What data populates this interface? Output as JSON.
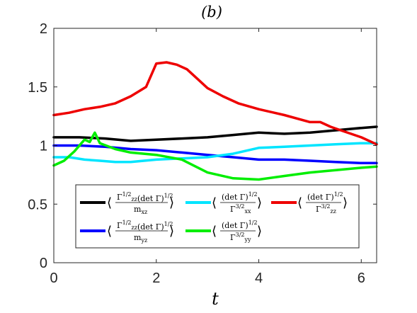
{
  "chart_data": {
    "type": "line",
    "title": "(b)",
    "xlabel": "t",
    "ylabel": "",
    "xlim": [
      0,
      6.3
    ],
    "ylim": [
      0,
      2
    ],
    "xticks": [
      0,
      2,
      4,
      6
    ],
    "yticks": [
      0,
      0.5,
      1,
      1.5,
      2
    ],
    "xtick_labels": [
      "0",
      "2",
      "4",
      "6"
    ],
    "ytick_labels": [
      "0",
      "0.5",
      "1",
      "1.5",
      "2"
    ],
    "grid": false,
    "legend_position": "lower-center",
    "series": [
      {
        "name": "⟨ Γzz^{1/2}(det Γ)^{1/2} / mxz ⟩",
        "color": "#000000",
        "legend_parts": {
          "num_a": "Γ",
          "num_a_sup": "1/2",
          "num_a_sub": "zz",
          "num_b": "(det Γ)",
          "num_b_sup": "1/2",
          "den": "m",
          "den_sub": "xz"
        },
        "x": [
          0,
          0.5,
          1.0,
          1.5,
          2.0,
          2.5,
          3.0,
          3.5,
          4.0,
          4.5,
          5.0,
          5.5,
          6.0,
          6.3
        ],
        "y": [
          1.07,
          1.07,
          1.06,
          1.04,
          1.05,
          1.06,
          1.07,
          1.09,
          1.11,
          1.1,
          1.11,
          1.13,
          1.15,
          1.16
        ]
      },
      {
        "name": "⟨ Γzz^{1/2}(det Γ)^{1/2} / myz ⟩",
        "color": "#0000ff",
        "legend_parts": {
          "num_a": "Γ",
          "num_a_sup": "1/2",
          "num_a_sub": "zz",
          "num_b": "(det Γ)",
          "num_b_sup": "1/2",
          "den": "m",
          "den_sub": "yz"
        },
        "x": [
          0,
          0.5,
          1.0,
          1.5,
          2.0,
          2.5,
          3.0,
          3.5,
          4.0,
          4.5,
          5.0,
          5.5,
          6.0,
          6.3
        ],
        "y": [
          1.0,
          1.0,
          0.99,
          0.97,
          0.96,
          0.94,
          0.92,
          0.9,
          0.88,
          0.88,
          0.87,
          0.86,
          0.85,
          0.85
        ]
      },
      {
        "name": "⟨ (det Γ)^{1/2} / Γxx^{3/2} ⟩",
        "color": "#00e5ff",
        "legend_parts": {
          "num_b": "(det Γ)",
          "num_b_sup": "1/2",
          "den": "Γ",
          "den_sup": "3/2",
          "den_sub": "xx"
        },
        "x": [
          0,
          0.3,
          0.6,
          0.9,
          1.2,
          1.5,
          2.0,
          2.5,
          3.0,
          3.5,
          4.0,
          4.5,
          5.0,
          5.5,
          6.0,
          6.3
        ],
        "y": [
          0.9,
          0.9,
          0.88,
          0.87,
          0.86,
          0.86,
          0.88,
          0.89,
          0.9,
          0.93,
          0.98,
          0.99,
          1.0,
          1.01,
          1.02,
          1.02
        ]
      },
      {
        "name": "⟨ (det Γ)^{1/2} / Γyy^{3/2} ⟩",
        "color": "#00ee00",
        "legend_parts": {
          "num_b": "(det Γ)",
          "num_b_sup": "1/2",
          "den": "Γ",
          "den_sup": "3/2",
          "den_sub": "yy"
        },
        "x": [
          0,
          0.2,
          0.4,
          0.6,
          0.7,
          0.8,
          0.9,
          1.2,
          1.5,
          2.0,
          2.5,
          3.0,
          3.5,
          4.0,
          4.5,
          5.0,
          5.5,
          6.0,
          6.3
        ],
        "y": [
          0.83,
          0.87,
          0.95,
          1.05,
          1.03,
          1.11,
          1.02,
          0.97,
          0.94,
          0.92,
          0.88,
          0.77,
          0.72,
          0.71,
          0.74,
          0.77,
          0.79,
          0.81,
          0.82
        ]
      },
      {
        "name": "⟨ (det Γ)^{1/2} / Γzz^{3/2} ⟩",
        "color": "#ee0000",
        "legend_parts": {
          "num_b": "(det Γ)",
          "num_b_sup": "1/2",
          "den": "Γ",
          "den_sup": "3/2",
          "den_sub": "zz"
        },
        "x": [
          0,
          0.3,
          0.6,
          0.9,
          1.2,
          1.5,
          1.8,
          2.0,
          2.2,
          2.4,
          2.6,
          2.8,
          3.0,
          3.3,
          3.6,
          4.0,
          4.5,
          5.0,
          5.2,
          5.4,
          5.6,
          6.0,
          6.3
        ],
        "y": [
          1.26,
          1.28,
          1.31,
          1.33,
          1.36,
          1.42,
          1.5,
          1.7,
          1.71,
          1.69,
          1.65,
          1.57,
          1.49,
          1.42,
          1.36,
          1.31,
          1.26,
          1.2,
          1.2,
          1.16,
          1.13,
          1.07,
          1.01
        ]
      }
    ]
  }
}
